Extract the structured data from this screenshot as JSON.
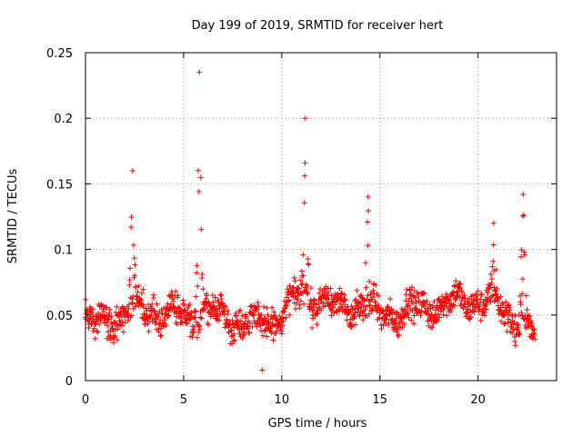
{
  "chart_data": {
    "type": "scatter",
    "title": "Day 199 of 2019, SRMTID for receiver hert",
    "xlabel": "GPS time / hours",
    "ylabel": "SRMTID / TECUs",
    "xlim": [
      0,
      24
    ],
    "ylim": [
      0,
      0.25
    ],
    "xticks": [
      0,
      5,
      10,
      15,
      20
    ],
    "xtick_labels": [
      "0",
      "5",
      "10",
      "15",
      "20"
    ],
    "yticks": [
      0,
      0.05,
      0.1,
      0.15,
      0.2,
      0.25
    ],
    "ytick_labels": [
      "0",
      "0.05",
      "0.1",
      "0.15",
      "0.2",
      "0.25"
    ],
    "grid": true,
    "marker": "+",
    "series": [
      {
        "name": "SRMTID",
        "color": "#ff0000",
        "x_range": [
          0,
          22.9
        ],
        "x_step": 0.0167,
        "baseline_profile": {
          "x": [
            0,
            1,
            2,
            3,
            4,
            5,
            6,
            7,
            8,
            9,
            10,
            11,
            12,
            13,
            14,
            15,
            16,
            17,
            18,
            19,
            20,
            21,
            22,
            22.9
          ],
          "y": [
            0.042,
            0.045,
            0.05,
            0.055,
            0.052,
            0.05,
            0.052,
            0.05,
            0.045,
            0.043,
            0.05,
            0.065,
            0.062,
            0.055,
            0.058,
            0.05,
            0.052,
            0.055,
            0.058,
            0.06,
            0.062,
            0.058,
            0.045,
            0.035
          ]
        },
        "peaks": [
          {
            "x": 2.4,
            "y": 0.16
          },
          {
            "x": 5.8,
            "y": 0.235
          },
          {
            "x": 11.2,
            "y": 0.2
          },
          {
            "x": 14.4,
            "y": 0.14
          },
          {
            "x": 20.8,
            "y": 0.12
          },
          {
            "x": 22.3,
            "y": 0.142
          }
        ],
        "min_value": 0.008,
        "min_value_x": 9.0
      }
    ]
  }
}
